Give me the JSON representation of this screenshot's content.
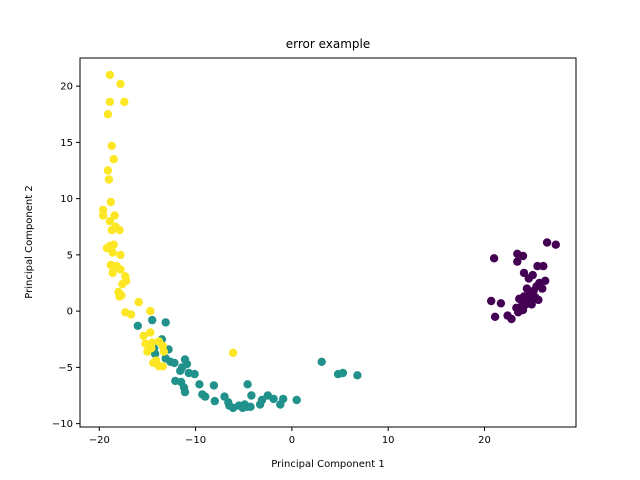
{
  "chart_data": {
    "type": "scatter",
    "title": "error example",
    "xlabel": "Principal Component 1",
    "ylabel": "Principal Component 2",
    "xlim": [
      -22,
      29.5
    ],
    "ylim": [
      -10.3,
      22.5
    ],
    "xticks": [
      -20,
      -10,
      0,
      10,
      20
    ],
    "yticks": [
      -10,
      -5,
      0,
      5,
      10,
      15,
      20
    ],
    "grid": false,
    "legend": "none",
    "series": [
      {
        "color": "#440154",
        "points": [
          [
            26.5,
            6.1
          ],
          [
            27.4,
            5.9
          ],
          [
            23.4,
            5.1
          ],
          [
            24.0,
            4.9
          ],
          [
            21.0,
            4.7
          ],
          [
            23.4,
            4.4
          ],
          [
            25.5,
            4.0
          ],
          [
            26.1,
            4.0
          ],
          [
            24.1,
            3.4
          ],
          [
            25.0,
            3.2
          ],
          [
            24.6,
            2.9
          ],
          [
            26.3,
            2.7
          ],
          [
            25.7,
            2.5
          ],
          [
            25.4,
            2.2
          ],
          [
            26.0,
            2.0
          ],
          [
            24.4,
            2.0
          ],
          [
            25.1,
            1.8
          ],
          [
            24.7,
            1.5
          ],
          [
            24.1,
            1.3
          ],
          [
            25.3,
            1.2
          ],
          [
            23.6,
            1.1
          ],
          [
            24.8,
            1.1
          ],
          [
            25.6,
            1.0
          ],
          [
            23.9,
            0.9
          ],
          [
            20.7,
            0.9
          ],
          [
            24.4,
            0.8
          ],
          [
            21.7,
            0.7
          ],
          [
            24.9,
            0.6
          ],
          [
            24.3,
            0.6
          ],
          [
            23.9,
            0.5
          ],
          [
            23.3,
            0.3
          ],
          [
            24.0,
            0.1
          ],
          [
            23.5,
            -0.1
          ],
          [
            21.1,
            -0.5
          ],
          [
            22.4,
            -0.4
          ],
          [
            22.8,
            -0.7
          ]
        ]
      },
      {
        "color": "#21918c",
        "points": [
          [
            -14.5,
            -0.8
          ],
          [
            -13.1,
            -1.0
          ],
          [
            -16.0,
            -1.3
          ],
          [
            -13.5,
            -2.5
          ],
          [
            -14.3,
            -3.3
          ],
          [
            -12.8,
            -3.4
          ],
          [
            -14.2,
            -3.8
          ],
          [
            -13.1,
            -4.2
          ],
          [
            -11.1,
            -4.3
          ],
          [
            -12.6,
            -4.5
          ],
          [
            -12.2,
            -4.6
          ],
          [
            -10.9,
            -4.7
          ],
          [
            -11.4,
            -5.0
          ],
          [
            -10.7,
            -5.5
          ],
          [
            -11.6,
            -5.3
          ],
          [
            -10.1,
            -5.6
          ],
          [
            -12.1,
            -6.2
          ],
          [
            -11.5,
            -6.3
          ],
          [
            -9.6,
            -6.5
          ],
          [
            -8.1,
            -6.6
          ],
          [
            -11.2,
            -6.8
          ],
          [
            -9.3,
            -7.4
          ],
          [
            -11.1,
            -7.2
          ],
          [
            -9.0,
            -7.6
          ],
          [
            -7.0,
            -7.6
          ],
          [
            -4.6,
            -6.5
          ],
          [
            -4.2,
            -7.5
          ],
          [
            -2.5,
            -7.5
          ],
          [
            -3.1,
            -7.9
          ],
          [
            -1.9,
            -7.8
          ],
          [
            -0.9,
            -7.8
          ],
          [
            0.5,
            -7.9
          ],
          [
            -8.0,
            -8.0
          ],
          [
            -6.6,
            -8.1
          ],
          [
            -6.5,
            -8.4
          ],
          [
            -5.5,
            -8.4
          ],
          [
            -4.3,
            -8.5
          ],
          [
            -4.9,
            -8.3
          ],
          [
            -3.3,
            -8.3
          ],
          [
            -1.2,
            -8.3
          ],
          [
            -6.1,
            -8.6
          ],
          [
            -5.1,
            -8.6
          ],
          [
            -4.6,
            -8.5
          ],
          [
            3.1,
            -4.5
          ],
          [
            4.8,
            -5.6
          ],
          [
            5.3,
            -5.5
          ],
          [
            6.8,
            -5.7
          ]
        ]
      },
      {
        "color": "#fde725",
        "points": [
          [
            -18.9,
            21.0
          ],
          [
            -17.8,
            20.2
          ],
          [
            -18.9,
            18.6
          ],
          [
            -17.4,
            18.6
          ],
          [
            -19.1,
            17.5
          ],
          [
            -18.7,
            14.7
          ],
          [
            -18.5,
            13.5
          ],
          [
            -19.1,
            12.5
          ],
          [
            -19.0,
            11.7
          ],
          [
            -18.8,
            9.7
          ],
          [
            -19.6,
            9.0
          ],
          [
            -19.6,
            8.5
          ],
          [
            -18.4,
            8.5
          ],
          [
            -18.9,
            8.0
          ],
          [
            -18.7,
            7.2
          ],
          [
            -18.3,
            7.5
          ],
          [
            -17.9,
            7.2
          ],
          [
            -18.9,
            5.8
          ],
          [
            -18.5,
            5.9
          ],
          [
            -19.2,
            5.6
          ],
          [
            -18.6,
            5.2
          ],
          [
            -17.8,
            5.0
          ],
          [
            -18.8,
            4.1
          ],
          [
            -18.2,
            4.0
          ],
          [
            -17.8,
            3.7
          ],
          [
            -18.6,
            3.4
          ],
          [
            -17.3,
            3.1
          ],
          [
            -17.2,
            2.7
          ],
          [
            -17.6,
            2.4
          ],
          [
            -18.0,
            1.7
          ],
          [
            -17.7,
            1.4
          ],
          [
            -17.9,
            1.3
          ],
          [
            -15.9,
            0.8
          ],
          [
            -17.3,
            -0.1
          ],
          [
            -16.7,
            -0.3
          ],
          [
            -14.7,
            0.0
          ],
          [
            -14.7,
            -1.9
          ],
          [
            -15.4,
            -2.2
          ],
          [
            -15.2,
            -2.9
          ],
          [
            -14.9,
            -3.0
          ],
          [
            -14.5,
            -2.8
          ],
          [
            -13.8,
            -2.7
          ],
          [
            -13.4,
            -3.1
          ],
          [
            -14.6,
            -3.3
          ],
          [
            -13.3,
            -3.6
          ],
          [
            -15.0,
            -3.6
          ],
          [
            -14.1,
            -4.4
          ],
          [
            -14.4,
            -4.6
          ],
          [
            -13.4,
            -4.9
          ],
          [
            -13.8,
            -4.9
          ],
          [
            -6.1,
            -3.7
          ]
        ]
      }
    ]
  }
}
